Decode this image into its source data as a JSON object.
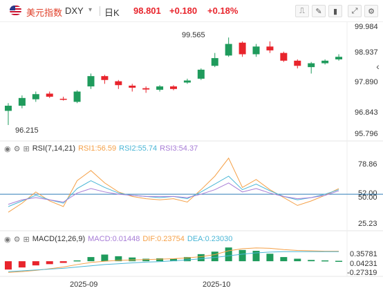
{
  "header": {
    "name": "美元指数",
    "symbol": "DXY",
    "caret": "▾",
    "period": "日K",
    "price": "98.801",
    "change": "+0.180",
    "percent": "+0.18%",
    "tools": [
      "measure-icon",
      "pencil-icon",
      "candle-type-icon",
      "fullscreen-icon",
      "settings-icon"
    ]
  },
  "main_axis": [
    "99.984",
    "98.937",
    "97.890",
    "96.843",
    "95.796"
  ],
  "annotations": {
    "high": "99.565",
    "low": "96.215"
  },
  "rsi": {
    "label": "RSI(7,14,21)",
    "rsi1": "RSI1:56.59",
    "rsi2": "RSI2:55.74",
    "rsi3": "RSI3:54.37",
    "axis": [
      "78.86",
      "52.00",
      "50.00",
      "25.23"
    ]
  },
  "macd": {
    "label": "MACD(12,26,9)",
    "macd": "MACD:0.01448",
    "dif": "DIF:0.23754",
    "dea": "DEA:0.23030",
    "axis": [
      "0.35781",
      "0.04231",
      "-0.27319"
    ]
  },
  "x_labels": [
    "2025-09",
    "2025-10"
  ],
  "colors": {
    "up": "#e8242c",
    "down": "#1f9b5c",
    "rsi1": "#f5a047",
    "rsi2": "#4ab6d6",
    "rsi3": "#a77cd6",
    "dif": "#f5a047",
    "dea": "#4ab6d6",
    "accent": "#e8242c"
  },
  "chart_data": {
    "type": "candlestick",
    "candles": [
      {
        "o": 96.75,
        "c": 96.95,
        "h": 97.05,
        "l": 96.2
      },
      {
        "o": 96.95,
        "c": 97.25,
        "h": 97.35,
        "l": 96.85
      },
      {
        "o": 97.2,
        "c": 97.4,
        "h": 97.5,
        "l": 97.1
      },
      {
        "o": 97.42,
        "c": 97.3,
        "h": 97.5,
        "l": 97.25
      },
      {
        "o": 97.22,
        "c": 97.2,
        "h": 97.3,
        "l": 97.15
      },
      {
        "o": 97.1,
        "c": 97.5,
        "h": 97.55,
        "l": 97.05
      },
      {
        "o": 97.7,
        "c": 98.1,
        "h": 98.2,
        "l": 97.6
      },
      {
        "o": 98.1,
        "c": 97.95,
        "h": 98.15,
        "l": 97.8
      },
      {
        "o": 97.9,
        "c": 97.75,
        "h": 97.95,
        "l": 97.6
      },
      {
        "o": 97.73,
        "c": 97.65,
        "h": 97.8,
        "l": 97.5
      },
      {
        "o": 97.63,
        "c": 97.58,
        "h": 97.7,
        "l": 97.45
      },
      {
        "o": 97.57,
        "c": 97.7,
        "h": 97.75,
        "l": 97.5
      },
      {
        "o": 97.7,
        "c": 97.6,
        "h": 97.75,
        "l": 97.55
      },
      {
        "o": 97.85,
        "c": 97.93,
        "h": 98.0,
        "l": 97.8
      },
      {
        "o": 98.0,
        "c": 98.35,
        "h": 98.4,
        "l": 97.95
      },
      {
        "o": 98.5,
        "c": 98.8,
        "h": 99.0,
        "l": 98.45
      },
      {
        "o": 98.9,
        "c": 99.35,
        "h": 99.6,
        "l": 98.85
      },
      {
        "o": 99.4,
        "c": 98.95,
        "h": 99.45,
        "l": 98.85
      },
      {
        "o": 98.95,
        "c": 99.25,
        "h": 99.35,
        "l": 98.85
      },
      {
        "o": 99.25,
        "c": 99.1,
        "h": 99.45,
        "l": 99.0
      },
      {
        "o": 99.0,
        "c": 98.7,
        "h": 99.05,
        "l": 98.65
      },
      {
        "o": 98.7,
        "c": 98.5,
        "h": 98.75,
        "l": 98.4
      },
      {
        "o": 98.45,
        "c": 98.6,
        "h": 98.65,
        "l": 98.2
      },
      {
        "o": 98.6,
        "c": 98.7,
        "h": 98.75,
        "l": 98.55
      },
      {
        "o": 98.75,
        "c": 98.85,
        "h": 98.95,
        "l": 98.7
      }
    ],
    "ylim": [
      95.796,
      99.984
    ],
    "rsi1": [
      34,
      42,
      52,
      44,
      39,
      62,
      71,
      60,
      52,
      48,
      46,
      45,
      46,
      43,
      54,
      66,
      82,
      56,
      63,
      54,
      47,
      40,
      44,
      49,
      55
    ],
    "rsi2": [
      39,
      44,
      49,
      45,
      42,
      55,
      62,
      56,
      51,
      49,
      48,
      47,
      48,
      46,
      52,
      59,
      66,
      54,
      59,
      53,
      48,
      45,
      47,
      50,
      54
    ],
    "rsi3": [
      41,
      45,
      47,
      45,
      43,
      51,
      55,
      52,
      50,
      49,
      48,
      48,
      48,
      47,
      50,
      54,
      60,
      52,
      55,
      51,
      48,
      46,
      47,
      49,
      53
    ],
    "macd_hist": [
      -0.2,
      -0.15,
      -0.1,
      -0.07,
      -0.04,
      0.02,
      0.1,
      0.16,
      0.12,
      0.09,
      0.06,
      0.07,
      0.06,
      0.1,
      0.17,
      0.23,
      0.33,
      0.27,
      0.25,
      0.18,
      0.1,
      0.06,
      0.03,
      0.02,
      0.01
    ],
    "dif": [
      -0.27,
      -0.25,
      -0.22,
      -0.18,
      -0.14,
      -0.08,
      -0.03,
      0.0,
      0.02,
      0.03,
      0.04,
      0.05,
      0.06,
      0.08,
      0.11,
      0.16,
      0.25,
      0.3,
      0.32,
      0.31,
      0.28,
      0.26,
      0.25,
      0.24,
      0.24
    ],
    "dea": [
      -0.25,
      -0.23,
      -0.21,
      -0.19,
      -0.17,
      -0.14,
      -0.11,
      -0.08,
      -0.06,
      -0.04,
      -0.02,
      -0.01,
      0.01,
      0.03,
      0.06,
      0.09,
      0.13,
      0.17,
      0.2,
      0.22,
      0.23,
      0.23,
      0.23,
      0.23,
      0.23
    ],
    "macd_ylim": [
      -0.33,
      0.4
    ]
  }
}
